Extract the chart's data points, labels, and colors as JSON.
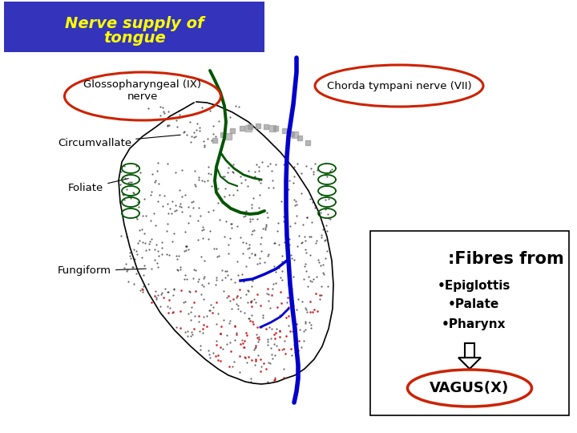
{
  "title_line1": "Nerve supply of",
  "title_line2": "tongue",
  "title_bg": "#3333bb",
  "title_color": "#ffff00",
  "bg_color": "#ffffff",
  "glosso_label": "Glossopharyngeal (IX)\nnerve",
  "chorda_label": "Chorda tympani nerve (VII)",
  "circumvallate_label": "Circumvallate",
  "foliate_label": "Foliate",
  "fungiform_label": "Fungiform",
  "fibres_title": ":Fibres from",
  "fibres_items": [
    "•Epiglottis",
    "•Palate",
    "•Pharynx"
  ],
  "vagus_label": "VAGUS(X)",
  "ellipse_color": "#cc2200",
  "green_color": "#005500",
  "blue_color": "#0000cc",
  "black_color": "#000000",
  "gray_color": "#999999",
  "red_dot_color": "#cc0000"
}
